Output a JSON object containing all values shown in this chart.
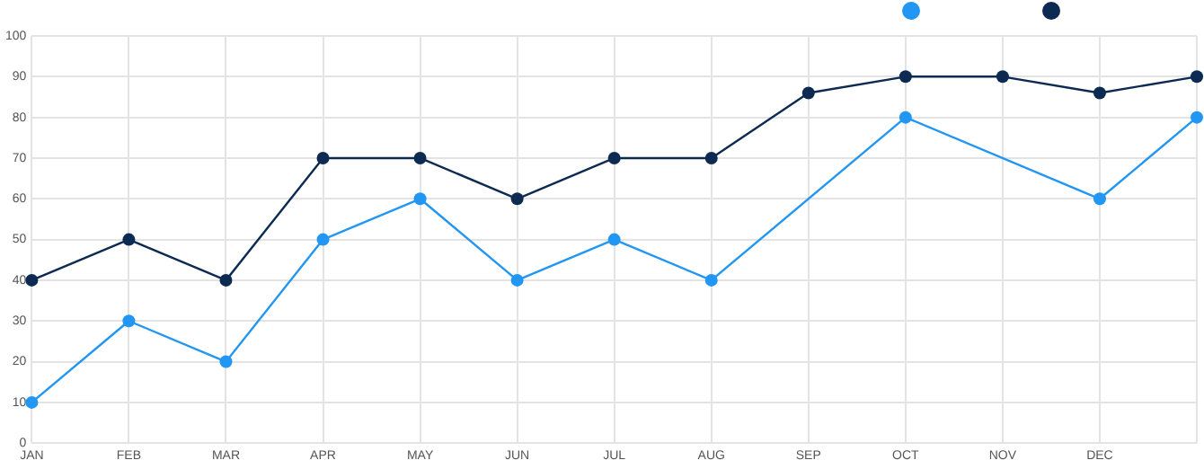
{
  "chart_data": {
    "type": "line",
    "categories": [
      "JAN",
      "FEB",
      "MAR",
      "APR",
      "MAY",
      "JUN",
      "JUL",
      "AUG",
      "SEP",
      "OCT",
      "NOV",
      "DEC",
      null
    ],
    "series": [
      {
        "color": "#0d2b52",
        "values": [
          40,
          50,
          40,
          70,
          70,
          60,
          70,
          70,
          86,
          90,
          90,
          86,
          90
        ]
      },
      {
        "color": "#2196f3",
        "values": [
          10,
          30,
          20,
          50,
          60,
          40,
          50,
          40,
          null,
          80,
          null,
          60,
          80
        ]
      }
    ],
    "ylim": [
      0,
      100
    ],
    "yticks": [
      0,
      10,
      20,
      30,
      40,
      50,
      60,
      70,
      80,
      90,
      100
    ],
    "grid": true,
    "marker": "circle",
    "line_style": "solid"
  }
}
